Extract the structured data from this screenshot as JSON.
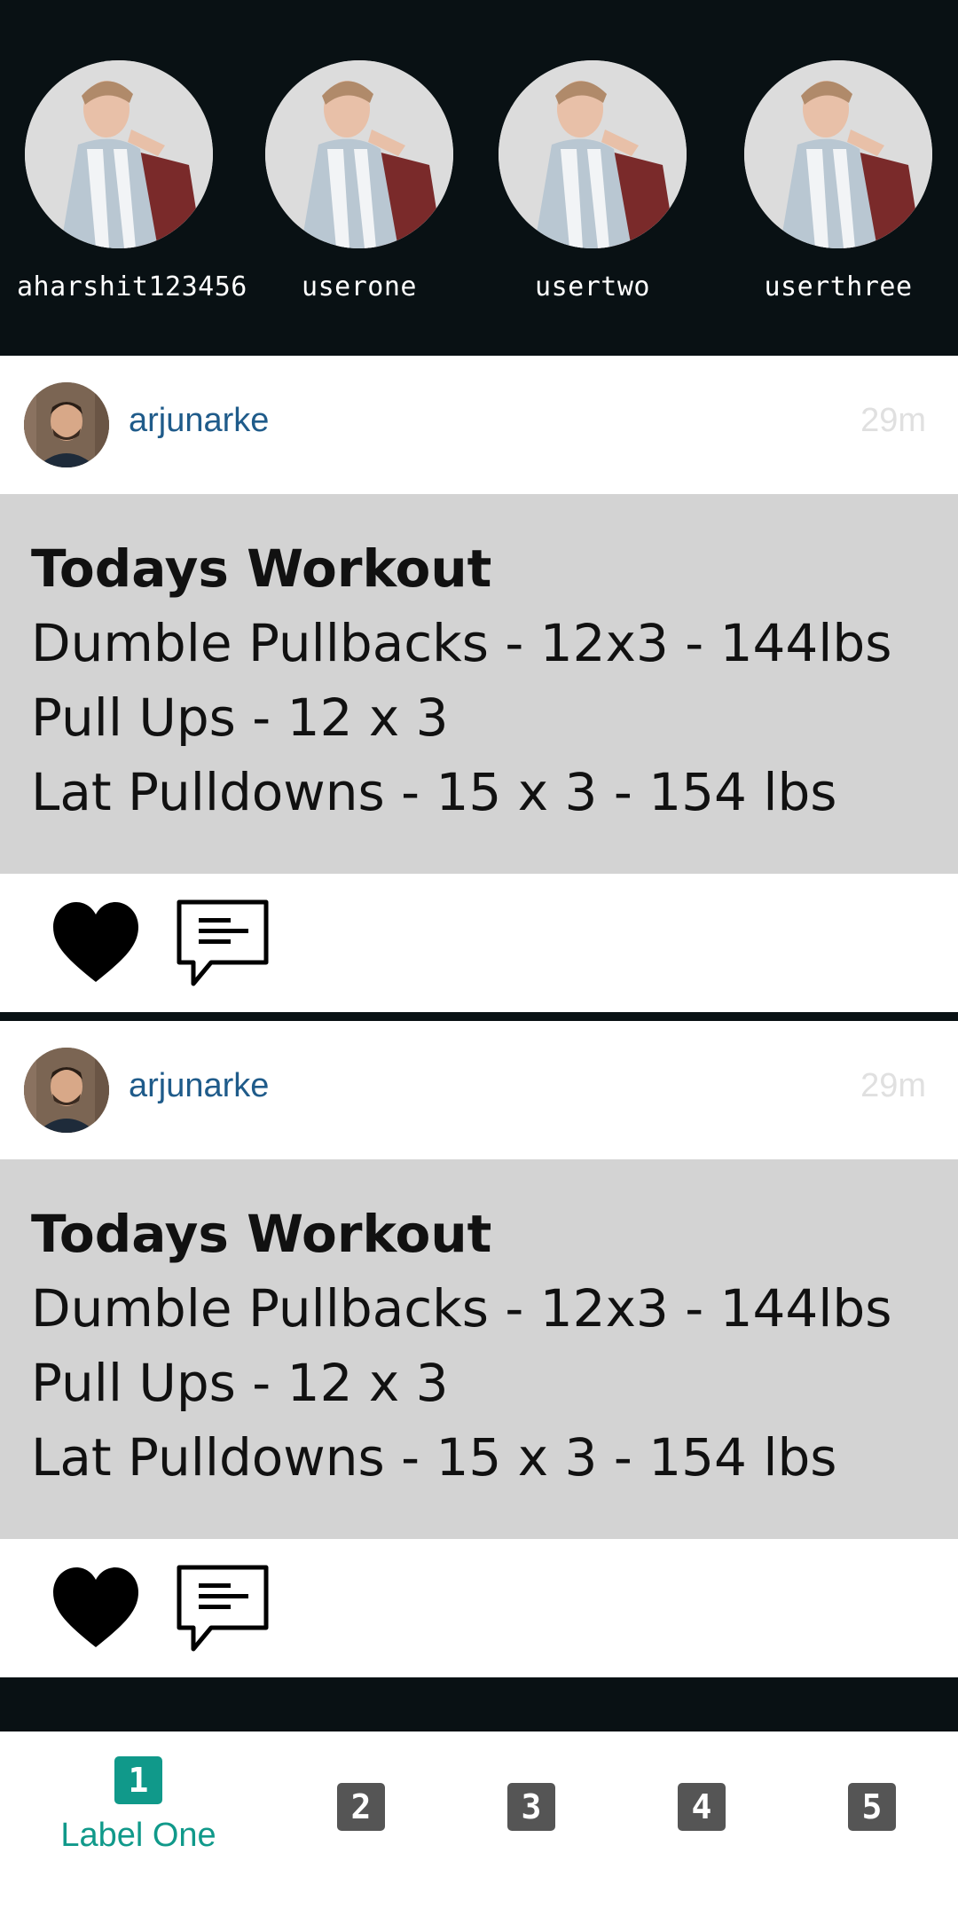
{
  "stories": [
    {
      "name": "aharshit123456",
      "icon": "user-avatar-icon"
    },
    {
      "name": "userone",
      "icon": "user-avatar-icon"
    },
    {
      "name": "usertwo",
      "icon": "user-avatar-icon"
    },
    {
      "name": "userthree",
      "icon": "user-avatar-icon"
    }
  ],
  "posts": [
    {
      "username": "arjunarke",
      "time": "29m",
      "title": "Todays Workout",
      "lines": [
        "Dumble Pullbacks - 12x3 - 144lbs",
        "Pull Ups - 12 x 3",
        "Lat Pulldowns - 15 x 3 - 154 lbs"
      ]
    },
    {
      "username": "arjunarke",
      "time": "29m",
      "title": "Todays Workout",
      "lines": [
        "Dumble Pullbacks - 12x3 - 144lbs",
        "Pull Ups - 12 x 3",
        "Lat Pulldowns - 15 x 3 - 154 lbs"
      ]
    }
  ],
  "nav": {
    "tabs": [
      {
        "badge": "1",
        "label": "Label One",
        "active": true
      },
      {
        "badge": "2",
        "label": "",
        "active": false
      },
      {
        "badge": "3",
        "label": "",
        "active": false
      },
      {
        "badge": "4",
        "label": "",
        "active": false
      },
      {
        "badge": "5",
        "label": "",
        "active": false
      }
    ]
  },
  "colors": {
    "header_bg": "#091114",
    "username": "#1f5b8a",
    "time": "#e0e0e0",
    "post_body": "#d3d3d3",
    "accent": "#10998a"
  }
}
